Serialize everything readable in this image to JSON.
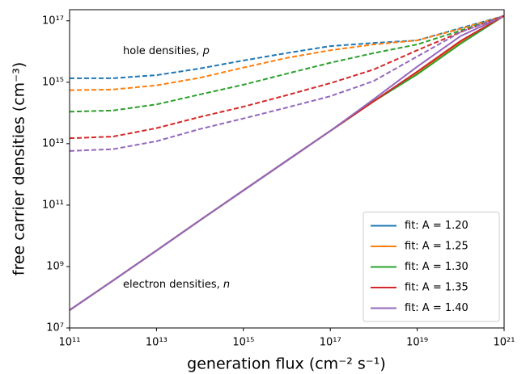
{
  "chart_data": {
    "type": "line",
    "xlabel": "generation flux (cm⁻² s⁻¹)",
    "ylabel": "free carrier densities (cm⁻³)",
    "xscale": "log",
    "yscale": "log",
    "xlim": [
      100000000000.0,
      1e+21
    ],
    "ylim": [
      10000000.0,
      2.3e+17
    ],
    "xticks": [
      {
        "value": 100000000000.0,
        "label": "10¹¹"
      },
      {
        "value": 10000000000000.0,
        "label": "10¹³"
      },
      {
        "value": 1000000000000000.0,
        "label": "10¹⁵"
      },
      {
        "value": 1e+17,
        "label": "10¹⁷"
      },
      {
        "value": 1e+19,
        "label": "10¹⁹"
      },
      {
        "value": 1e+21,
        "label": "10²¹"
      }
    ],
    "yticks": [
      {
        "value": 10000000.0,
        "label": "10⁷"
      },
      {
        "value": 1000000000.0,
        "label": "10⁹"
      },
      {
        "value": 100000000000.0,
        "label": "10¹¹"
      },
      {
        "value": 10000000000000.0,
        "label": "10¹³"
      },
      {
        "value": 1000000000000000.0,
        "label": "10¹⁵"
      },
      {
        "value": 1e+17,
        "label": "10¹⁷"
      }
    ],
    "annotations": [
      {
        "text": "hole densities, ",
        "symbol": "p"
      },
      {
        "text": "electron densities, ",
        "symbol": "n"
      }
    ],
    "legend": "lower right",
    "x": [
      100000000000.0,
      1000000000000.0,
      10000000000000.0,
      100000000000000.0,
      1000000000000000.0,
      1e+16,
      1e+17,
      1e+18,
      1e+19,
      1e+20,
      1e+21
    ],
    "series": [
      {
        "name": "fit: A  = 1.20",
        "color": "#1f77b4",
        "n": [
          38000000.0,
          350000000.0,
          3300000000.0,
          32000000000.0,
          300000000000.0,
          2800000000000.0,
          26000000000000.0,
          240000000000000.0,
          2200000000000000.0,
          2.2e+16,
          1.45e+17
        ],
        "p": [
          1350000000000000.0,
          1350000000000000.0,
          1700000000000000.0,
          2800000000000000.0,
          5100000000000000.0,
          8900000000000000.0,
          1.5e+16,
          1.9e+16,
          2.3e+16,
          5.8e+16,
          1.45e+17
        ]
      },
      {
        "name": "fit: A  = 1.25",
        "color": "#ff7f0e",
        "n": [
          38000000.0,
          350000000.0,
          3300000000.0,
          32000000000.0,
          300000000000.0,
          2800000000000.0,
          26000000000000.0,
          240000000000000.0,
          2000000000000000.0,
          2e+16,
          1.45e+17
        ],
        "p": [
          550000000000000.0,
          580000000000000.0,
          790000000000000.0,
          1400000000000000.0,
          3000000000000000.0,
          6200000000000000.0,
          1.1e+16,
          1.7e+16,
          2.3e+16,
          5.5e+16,
          1.45e+17
        ]
      },
      {
        "name": "fit: A  = 1.30",
        "color": "#2ca02c",
        "n": [
          38000000.0,
          350000000.0,
          3300000000.0,
          32000000000.0,
          300000000000.0,
          2800000000000.0,
          26000000000000.0,
          240000000000000.0,
          1800000000000000.0,
          1.8e+16,
          1.45e+17
        ],
        "p": [
          110000000000000.0,
          120000000000000.0,
          190000000000000.0,
          400000000000000.0,
          830000000000000.0,
          1900000000000000.0,
          4300000000000000.0,
          8900000000000000.0,
          1.7e+16,
          4.8e+16,
          1.45e+17
        ]
      },
      {
        "name": "fit: A  = 1.35",
        "color": "#d62728",
        "n": [
          38000000.0,
          350000000.0,
          3300000000.0,
          32000000000.0,
          300000000000.0,
          2800000000000.0,
          26000000000000.0,
          240000000000000.0,
          2200000000000000.0,
          2.2e+16,
          1.45e+17
        ],
        "p": [
          15000000000000.0,
          17000000000000.0,
          32000000000000.0,
          74000000000000.0,
          160000000000000.0,
          380000000000000.0,
          930000000000000.0,
          2600000000000000.0,
          1.1e+16,
          4.3e+16,
          1.45e+17
        ]
      },
      {
        "name": "fit: A  = 1.40",
        "color": "#9467bd",
        "n": [
          38000000.0,
          350000000.0,
          3300000000.0,
          32000000000.0,
          300000000000.0,
          2800000000000.0,
          26000000000000.0,
          280000000000000.0,
          3200000000000000.0,
          3.2e+16,
          1.45e+17
        ],
        "p": [
          5800000000000.0,
          6600000000000.0,
          12000000000000.0,
          30000000000000.0,
          66000000000000.0,
          150000000000000.0,
          350000000000000.0,
          1100000000000000.0,
          6900000000000000.0,
          4.3e+16,
          1.45e+17
        ]
      }
    ]
  }
}
